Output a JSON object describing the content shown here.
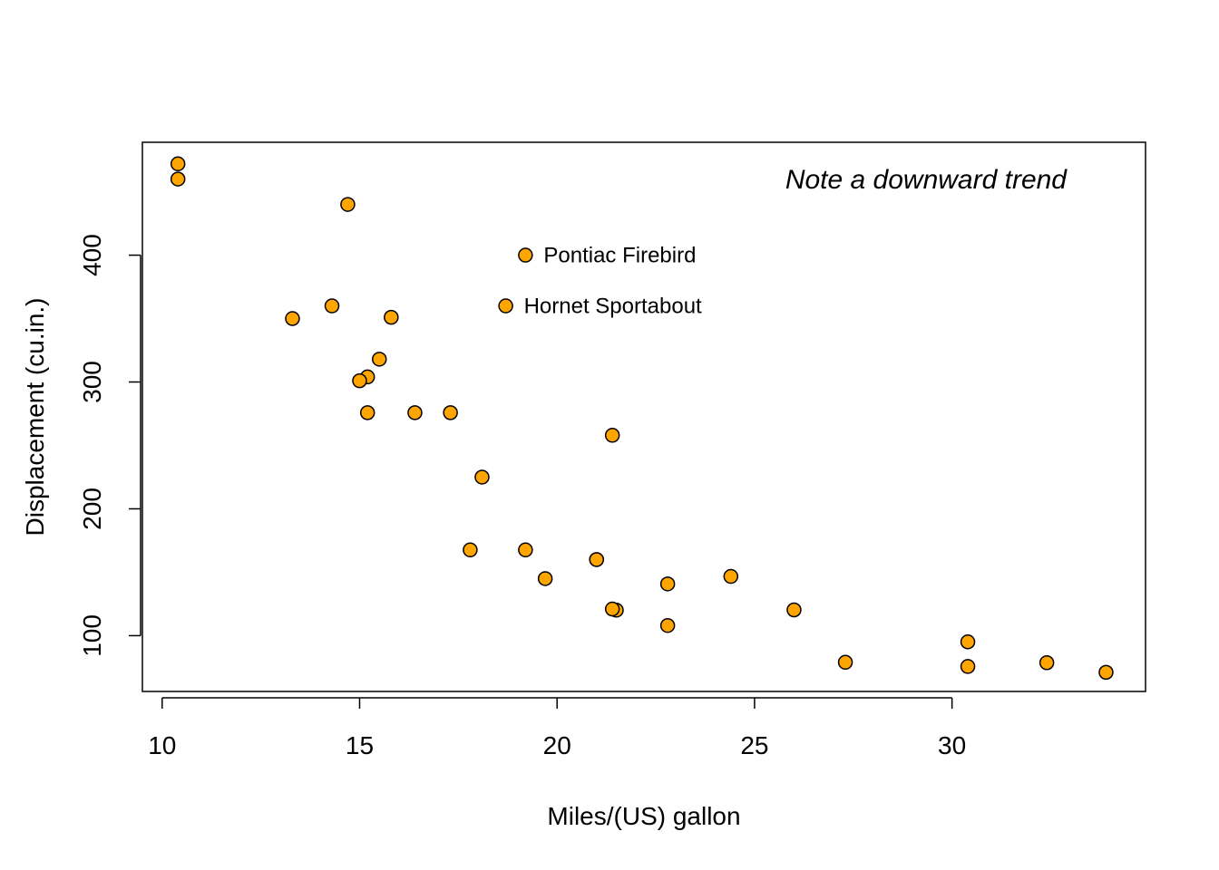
{
  "chart_data": {
    "type": "scatter",
    "xlabel": "Miles/(US) gallon",
    "ylabel": "Displacement (cu.in.)",
    "xlim": [
      9.5,
      34.9
    ],
    "ylim": [
      56,
      489
    ],
    "xticks": [
      10,
      15,
      20,
      25,
      30
    ],
    "yticks": [
      100,
      200,
      300,
      400
    ],
    "point_color": "#FFA500",
    "grid": false,
    "annotation": "Note a downward trend",
    "x": [
      21.0,
      21.0,
      22.8,
      21.4,
      18.7,
      18.1,
      14.3,
      24.4,
      22.8,
      19.2,
      17.8,
      16.4,
      17.3,
      15.2,
      10.4,
      10.4,
      14.7,
      32.4,
      30.4,
      33.9,
      21.5,
      15.5,
      15.2,
      13.3,
      19.2,
      27.3,
      26.0,
      30.4,
      15.8,
      19.7,
      15.0,
      21.4
    ],
    "y": [
      160.0,
      160.0,
      108.0,
      258.0,
      360.0,
      225.0,
      360.0,
      146.7,
      140.8,
      167.6,
      167.6,
      275.8,
      275.8,
      275.8,
      472.0,
      460.0,
      440.0,
      78.7,
      75.7,
      71.1,
      120.1,
      318.0,
      304.0,
      350.0,
      400.0,
      79.0,
      120.3,
      95.1,
      351.0,
      145.0,
      301.0,
      121.0
    ],
    "labeled_points": [
      {
        "label": "Hornet Sportabout",
        "x": 18.7,
        "y": 360.0
      },
      {
        "label": "Pontiac Firebird",
        "x": 19.2,
        "y": 400.0
      }
    ]
  }
}
